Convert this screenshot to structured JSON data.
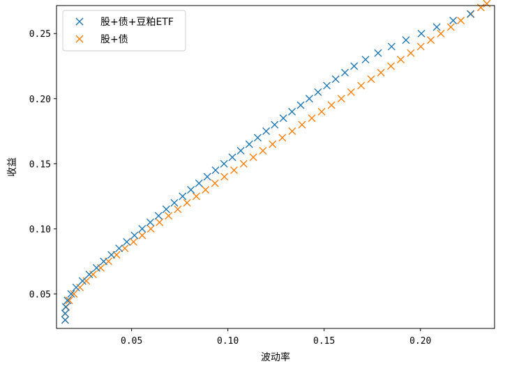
{
  "chart_data": {
    "type": "scatter",
    "title": "",
    "xlabel": "波动率",
    "ylabel": "收益",
    "xlim": [
      0.011,
      0.2385
    ],
    "ylim": [
      0.0235,
      0.2715
    ],
    "xticks": [
      0.05,
      0.1,
      0.15,
      0.2
    ],
    "xtick_labels": [
      "0.05",
      "0.10",
      "0.15",
      "0.20"
    ],
    "yticks": [
      0.05,
      0.1,
      0.15,
      0.2,
      0.25
    ],
    "ytick_labels": [
      "0.05",
      "0.10",
      "0.15",
      "0.20",
      "0.25"
    ],
    "grid": false,
    "legend_position": "upper-left",
    "marker": "x",
    "series": [
      {
        "name": "股+债+豆粕ETF",
        "color": "#1f77b4",
        "points": [
          [
            0.0155,
            0.03
          ],
          [
            0.0155,
            0.035
          ],
          [
            0.0158,
            0.04
          ],
          [
            0.0167,
            0.045
          ],
          [
            0.0186,
            0.05
          ],
          [
            0.0212,
            0.055
          ],
          [
            0.0245,
            0.06
          ],
          [
            0.028,
            0.065
          ],
          [
            0.0318,
            0.07
          ],
          [
            0.0355,
            0.075
          ],
          [
            0.0395,
            0.08
          ],
          [
            0.0435,
            0.085
          ],
          [
            0.0475,
            0.09
          ],
          [
            0.0515,
            0.095
          ],
          [
            0.0555,
            0.1
          ],
          [
            0.0597,
            0.105
          ],
          [
            0.064,
            0.11
          ],
          [
            0.068,
            0.115
          ],
          [
            0.0722,
            0.12
          ],
          [
            0.0765,
            0.125
          ],
          [
            0.0808,
            0.13
          ],
          [
            0.085,
            0.135
          ],
          [
            0.0893,
            0.14
          ],
          [
            0.0936,
            0.145
          ],
          [
            0.098,
            0.15
          ],
          [
            0.1023,
            0.155
          ],
          [
            0.1067,
            0.16
          ],
          [
            0.1111,
            0.165
          ],
          [
            0.1155,
            0.17
          ],
          [
            0.1199,
            0.175
          ],
          [
            0.1243,
            0.18
          ],
          [
            0.1288,
            0.185
          ],
          [
            0.1333,
            0.19
          ],
          [
            0.1378,
            0.195
          ],
          [
            0.1423,
            0.2
          ],
          [
            0.1468,
            0.205
          ],
          [
            0.1514,
            0.21
          ],
          [
            0.156,
            0.215
          ],
          [
            0.1608,
            0.22
          ],
          [
            0.1656,
            0.225
          ],
          [
            0.1715,
            0.23
          ],
          [
            0.178,
            0.235
          ],
          [
            0.185,
            0.24
          ],
          [
            0.1925,
            0.245
          ],
          [
            0.2005,
            0.25
          ],
          [
            0.2085,
            0.255
          ],
          [
            0.217,
            0.26
          ],
          [
            0.226,
            0.265
          ]
        ]
      },
      {
        "name": "股+债",
        "color": "#ff7f0e",
        "points": [
          [
            0.0155,
            0.03
          ],
          [
            0.0155,
            0.035
          ],
          [
            0.016,
            0.04
          ],
          [
            0.0176,
            0.045
          ],
          [
            0.02,
            0.05
          ],
          [
            0.0232,
            0.055
          ],
          [
            0.0265,
            0.06
          ],
          [
            0.03,
            0.065
          ],
          [
            0.034,
            0.07
          ],
          [
            0.038,
            0.075
          ],
          [
            0.0422,
            0.08
          ],
          [
            0.0465,
            0.085
          ],
          [
            0.051,
            0.09
          ],
          [
            0.0555,
            0.095
          ],
          [
            0.06,
            0.1
          ],
          [
            0.0645,
            0.105
          ],
          [
            0.0692,
            0.11
          ],
          [
            0.074,
            0.115
          ],
          [
            0.0788,
            0.12
          ],
          [
            0.0836,
            0.125
          ],
          [
            0.0884,
            0.13
          ],
          [
            0.0933,
            0.135
          ],
          [
            0.0982,
            0.14
          ],
          [
            0.1032,
            0.145
          ],
          [
            0.1082,
            0.15
          ],
          [
            0.1132,
            0.155
          ],
          [
            0.1182,
            0.16
          ],
          [
            0.1232,
            0.165
          ],
          [
            0.1283,
            0.17
          ],
          [
            0.1334,
            0.175
          ],
          [
            0.1385,
            0.18
          ],
          [
            0.1436,
            0.185
          ],
          [
            0.1487,
            0.19
          ],
          [
            0.1538,
            0.195
          ],
          [
            0.1589,
            0.2
          ],
          [
            0.164,
            0.205
          ],
          [
            0.1692,
            0.21
          ],
          [
            0.1744,
            0.215
          ],
          [
            0.1795,
            0.22
          ],
          [
            0.1847,
            0.225
          ],
          [
            0.1898,
            0.23
          ],
          [
            0.195,
            0.235
          ],
          [
            0.2002,
            0.24
          ],
          [
            0.2054,
            0.245
          ],
          [
            0.2106,
            0.25
          ],
          [
            0.2158,
            0.255
          ],
          [
            0.221,
            0.26
          ],
          [
            0.2262,
            0.265
          ],
          [
            0.2314,
            0.27
          ],
          [
            0.2345,
            0.273
          ]
        ]
      }
    ]
  }
}
